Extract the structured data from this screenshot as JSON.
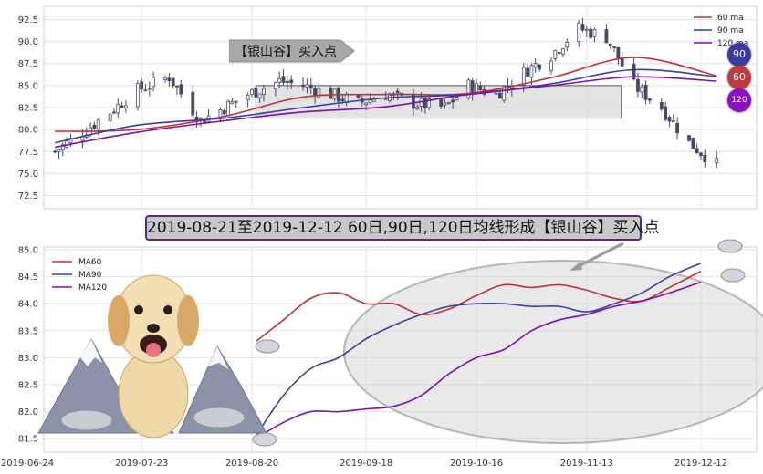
{
  "top_panel": {
    "y_ticks": [
      "92.5",
      "90.0",
      "87.5",
      "85.0",
      "82.5",
      "80.0",
      "77.5",
      "75.0",
      "72.5"
    ],
    "legend": [
      {
        "label": "60 ma",
        "color": "#c0303a"
      },
      {
        "label": "90 ma",
        "color": "#3a3f9a"
      },
      {
        "label": "120 ma",
        "color": "#7a10b0"
      }
    ],
    "arrow_label": "【银山谷】买入点",
    "badges": [
      {
        "text": "90",
        "color": "#3a3aa0"
      },
      {
        "text": "60",
        "color": "#c03a40"
      },
      {
        "text": "120",
        "color": "#8a10c0"
      }
    ]
  },
  "banner": "2019-08-21至2019-12-12 60日,90日,120日均线形成【银山谷】买入点",
  "bottom_panel": {
    "y_ticks": [
      "85.0",
      "84.5",
      "84.0",
      "83.5",
      "83.0",
      "82.5",
      "82.0",
      "81.5"
    ],
    "x_ticks": [
      "2019-06-24",
      "2019-07-23",
      "2019-08-20",
      "2019-09-18",
      "2019-10-16",
      "2019-11-13",
      "2019-12-12"
    ],
    "legend": [
      {
        "label": "MA60",
        "color": "#c0303a"
      },
      {
        "label": "MA90",
        "color": "#3a3f9a"
      },
      {
        "label": "MA120",
        "color": "#7a10b0"
      }
    ]
  },
  "chart_data": [
    {
      "type": "candlestick",
      "title": "",
      "ylim": [
        71.0,
        94.0
      ],
      "y_ticks": [
        72.5,
        75.0,
        77.5,
        80.0,
        82.5,
        85.0,
        87.5,
        90.0,
        92.5
      ],
      "grid": true,
      "legend_placement": "top-right",
      "close_anchors": {
        "x": [
          "2019-07-01",
          "2019-07-09",
          "2019-07-15",
          "2019-07-22",
          "2019-07-30",
          "2019-08-07",
          "2019-08-13",
          "2019-08-19",
          "2019-08-27",
          "2019-09-02",
          "2019-09-09",
          "2019-09-16",
          "2019-09-23",
          "2019-09-30",
          "2019-10-08",
          "2019-10-14",
          "2019-10-21",
          "2019-10-28",
          "2019-11-04",
          "2019-11-11",
          "2019-11-18",
          "2019-11-25",
          "2019-12-02",
          "2019-12-09",
          "2019-12-16"
        ],
        "y": [
          77.5,
          80.0,
          82.0,
          84.5,
          86.0,
          81.0,
          82.5,
          84.0,
          85.5,
          85.0,
          84.0,
          83.0,
          84.0,
          83.0,
          82.5,
          85.0,
          84.0,
          86.5,
          88.5,
          91.5,
          90.5,
          85.0,
          82.5,
          78.5,
          76.0
        ]
      },
      "series": [
        {
          "name": "60 ma",
          "x": [
            "2019-07-01",
            "2019-07-22",
            "2019-08-13",
            "2019-09-02",
            "2019-09-23",
            "2019-10-14",
            "2019-11-04",
            "2019-11-25",
            "2019-12-16"
          ],
          "values": [
            79.8,
            80.0,
            81.5,
            83.7,
            84.0,
            84.1,
            85.9,
            88.2,
            86.1
          ]
        },
        {
          "name": "90 ma",
          "x": [
            "2019-07-01",
            "2019-07-22",
            "2019-08-13",
            "2019-09-02",
            "2019-09-23",
            "2019-10-14",
            "2019-11-04",
            "2019-11-25",
            "2019-12-16"
          ],
          "values": [
            78.5,
            80.5,
            81.3,
            82.5,
            83.6,
            84.0,
            85.2,
            86.8,
            86.0
          ]
        },
        {
          "name": "120 ma",
          "x": [
            "2019-07-01",
            "2019-07-22",
            "2019-08-13",
            "2019-09-02",
            "2019-09-23",
            "2019-10-14",
            "2019-11-04",
            "2019-11-25",
            "2019-12-16"
          ],
          "values": [
            78.0,
            79.7,
            81.0,
            82.0,
            82.6,
            84.0,
            85.0,
            86.0,
            85.5
          ]
        }
      ]
    },
    {
      "type": "line",
      "title": "",
      "xlabel": "",
      "ylabel": "",
      "ylim": [
        81.25,
        85.05
      ],
      "y_ticks": [
        81.5,
        82.0,
        82.5,
        83.0,
        83.5,
        84.0,
        84.5,
        85.0
      ],
      "x_ticks": [
        "2019-06-24",
        "2019-07-23",
        "2019-08-20",
        "2019-09-18",
        "2019-10-16",
        "2019-11-13",
        "2019-12-12"
      ],
      "grid": true,
      "legend_placement": "top-left",
      "series": [
        {
          "name": "MA60",
          "x": [
            "2019-08-21",
            "2019-08-28",
            "2019-09-04",
            "2019-09-11",
            "2019-09-18",
            "2019-09-25",
            "2019-10-02",
            "2019-10-09",
            "2019-10-16",
            "2019-10-23",
            "2019-10-30",
            "2019-11-06",
            "2019-11-13",
            "2019-11-20",
            "2019-11-27",
            "2019-12-04",
            "2019-12-12"
          ],
          "values": [
            83.3,
            83.7,
            84.1,
            84.2,
            84.0,
            84.0,
            83.8,
            83.9,
            84.15,
            84.35,
            84.3,
            84.35,
            84.25,
            84.1,
            84.05,
            84.3,
            84.6
          ]
        },
        {
          "name": "MA90",
          "x": [
            "2019-08-21",
            "2019-08-28",
            "2019-09-04",
            "2019-09-11",
            "2019-09-18",
            "2019-09-25",
            "2019-10-02",
            "2019-10-09",
            "2019-10-16",
            "2019-10-23",
            "2019-10-30",
            "2019-11-06",
            "2019-11-13",
            "2019-11-20",
            "2019-11-27",
            "2019-12-04",
            "2019-12-12"
          ],
          "values": [
            81.55,
            82.3,
            82.8,
            83.0,
            83.35,
            83.6,
            83.8,
            83.95,
            84.0,
            84.0,
            83.95,
            83.95,
            83.85,
            84.0,
            84.2,
            84.5,
            84.75
          ]
        },
        {
          "name": "MA120",
          "x": [
            "2019-08-21",
            "2019-08-28",
            "2019-09-04",
            "2019-09-11",
            "2019-09-18",
            "2019-09-25",
            "2019-10-02",
            "2019-10-09",
            "2019-10-16",
            "2019-10-23",
            "2019-10-30",
            "2019-11-06",
            "2019-11-13",
            "2019-11-20",
            "2019-11-27",
            "2019-12-04",
            "2019-12-12"
          ],
          "values": [
            81.5,
            81.8,
            82.0,
            82.0,
            82.05,
            82.1,
            82.3,
            82.7,
            83.0,
            83.15,
            83.5,
            83.7,
            83.8,
            83.95,
            84.05,
            84.2,
            84.4
          ]
        }
      ]
    }
  ]
}
